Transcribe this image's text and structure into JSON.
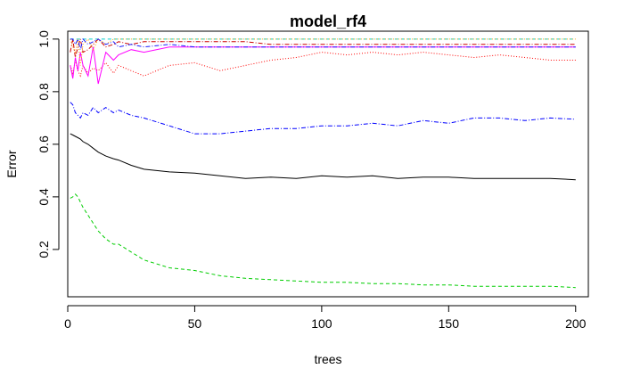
{
  "chart_data": {
    "type": "line",
    "title": "model_rf4",
    "xlabel": "trees",
    "ylabel": "Error",
    "xlim": [
      0,
      205
    ],
    "ylim": [
      0.02,
      1.03
    ],
    "x_ticks": [
      0,
      50,
      100,
      150,
      200
    ],
    "x_tick_labels": [
      "0",
      "50",
      "100",
      "150",
      "200"
    ],
    "y_ticks": [
      0.2,
      0.4,
      0.6,
      0.8,
      1.0
    ],
    "y_tick_labels": [
      "0.2",
      "0.4",
      "0.6",
      "0.8",
      "1.0"
    ],
    "y_tick_label_rotation": "vertical",
    "legend": "none",
    "grid": false,
    "x": [
      1,
      2,
      3,
      4,
      5,
      6,
      8,
      10,
      12,
      15,
      18,
      20,
      25,
      30,
      40,
      50,
      60,
      70,
      80,
      90,
      100,
      110,
      120,
      130,
      140,
      150,
      160,
      170,
      180,
      190,
      200
    ],
    "series": [
      {
        "color": "#000000",
        "dash": "solid",
        "values": [
          0.64,
          0.635,
          0.63,
          0.625,
          0.62,
          0.61,
          0.6,
          0.585,
          0.57,
          0.555,
          0.545,
          0.54,
          0.52,
          0.505,
          0.495,
          0.49,
          0.48,
          0.47,
          0.475,
          0.47,
          0.48,
          0.475,
          0.48,
          0.47,
          0.475,
          0.475,
          0.47,
          0.47,
          0.47,
          0.47,
          0.465
        ]
      },
      {
        "color": "#ff0000",
        "dash": "dotted",
        "values": [
          0.9,
          0.87,
          0.92,
          0.88,
          0.86,
          0.9,
          0.87,
          0.89,
          0.88,
          0.91,
          0.87,
          0.9,
          0.88,
          0.86,
          0.9,
          0.91,
          0.88,
          0.9,
          0.92,
          0.93,
          0.95,
          0.94,
          0.95,
          0.94,
          0.95,
          0.94,
          0.93,
          0.94,
          0.93,
          0.92,
          0.92
        ]
      },
      {
        "color": "#00cd00",
        "dash": "dashed",
        "values": [
          0.395,
          0.4,
          0.41,
          0.4,
          0.38,
          0.36,
          0.33,
          0.3,
          0.27,
          0.24,
          0.22,
          0.22,
          0.19,
          0.16,
          0.13,
          0.12,
          0.1,
          0.09,
          0.085,
          0.08,
          0.075,
          0.075,
          0.07,
          0.07,
          0.065,
          0.065,
          0.06,
          0.06,
          0.06,
          0.06,
          0.055
        ]
      },
      {
        "color": "#0000ff",
        "dash": "dashdot",
        "values": [
          0.76,
          0.75,
          0.72,
          0.71,
          0.7,
          0.72,
          0.71,
          0.74,
          0.72,
          0.74,
          0.72,
          0.73,
          0.71,
          0.7,
          0.67,
          0.64,
          0.64,
          0.65,
          0.66,
          0.66,
          0.67,
          0.67,
          0.68,
          0.67,
          0.69,
          0.68,
          0.7,
          0.7,
          0.69,
          0.7,
          0.695
        ]
      },
      {
        "color": "#00cdcd",
        "dash": "dashed",
        "values": [
          1.0,
          1.0,
          1.0,
          1.0,
          1.0,
          1.0,
          1.0,
          1.0,
          1.0,
          1.0,
          1.0,
          1.0,
          1.0,
          1.0,
          1.0,
          1.0,
          1.0,
          1.0,
          1.0,
          1.0,
          1.0,
          1.0,
          1.0,
          1.0,
          1.0,
          1.0,
          1.0,
          1.0,
          1.0,
          1.0,
          1.0
        ]
      },
      {
        "color": "#ff00ff",
        "dash": "solid",
        "values": [
          0.9,
          0.85,
          0.93,
          0.88,
          0.95,
          0.9,
          0.86,
          0.97,
          0.83,
          0.95,
          0.92,
          0.94,
          0.96,
          0.95,
          0.97,
          0.97,
          0.97,
          0.97,
          0.97,
          0.97,
          0.97,
          0.97,
          0.97,
          0.97,
          0.97,
          0.97,
          0.97,
          0.97,
          0.97,
          0.97,
          0.97
        ]
      },
      {
        "color": "#ffa500",
        "dash": "dotted",
        "values": [
          1.0,
          0.97,
          0.95,
          1.0,
          0.9,
          0.98,
          1.0,
          0.96,
          1.0,
          0.98,
          1.0,
          1.0,
          1.0,
          1.0,
          1.0,
          1.0,
          1.0,
          1.0,
          1.0,
          1.0,
          1.0,
          1.0,
          1.0,
          1.0,
          1.0,
          1.0,
          1.0,
          1.0,
          1.0,
          1.0,
          1.0
        ]
      },
      {
        "color": "#cd0000",
        "dash": "dashdot",
        "values": [
          0.95,
          1.0,
          0.93,
          0.97,
          1.0,
          0.95,
          0.96,
          0.98,
          1.0,
          0.97,
          0.98,
          0.99,
          0.98,
          0.99,
          0.99,
          0.99,
          0.99,
          0.99,
          0.98,
          0.98,
          0.98,
          0.98,
          0.98,
          0.98,
          0.98,
          0.98,
          0.98,
          0.98,
          0.98,
          0.98,
          0.98
        ]
      },
      {
        "color": "#1c1cff",
        "dash": "dashdot",
        "values": [
          1.0,
          1.0,
          0.98,
          1.0,
          0.96,
          1.0,
          0.98,
          0.99,
          1.0,
          0.98,
          0.99,
          0.97,
          0.98,
          0.97,
          0.98,
          0.97,
          0.97,
          0.97,
          0.97,
          0.97,
          0.97,
          0.97,
          0.97,
          0.97,
          0.97,
          0.97,
          0.97,
          0.97,
          0.97,
          0.97,
          0.97
        ]
      }
    ]
  }
}
